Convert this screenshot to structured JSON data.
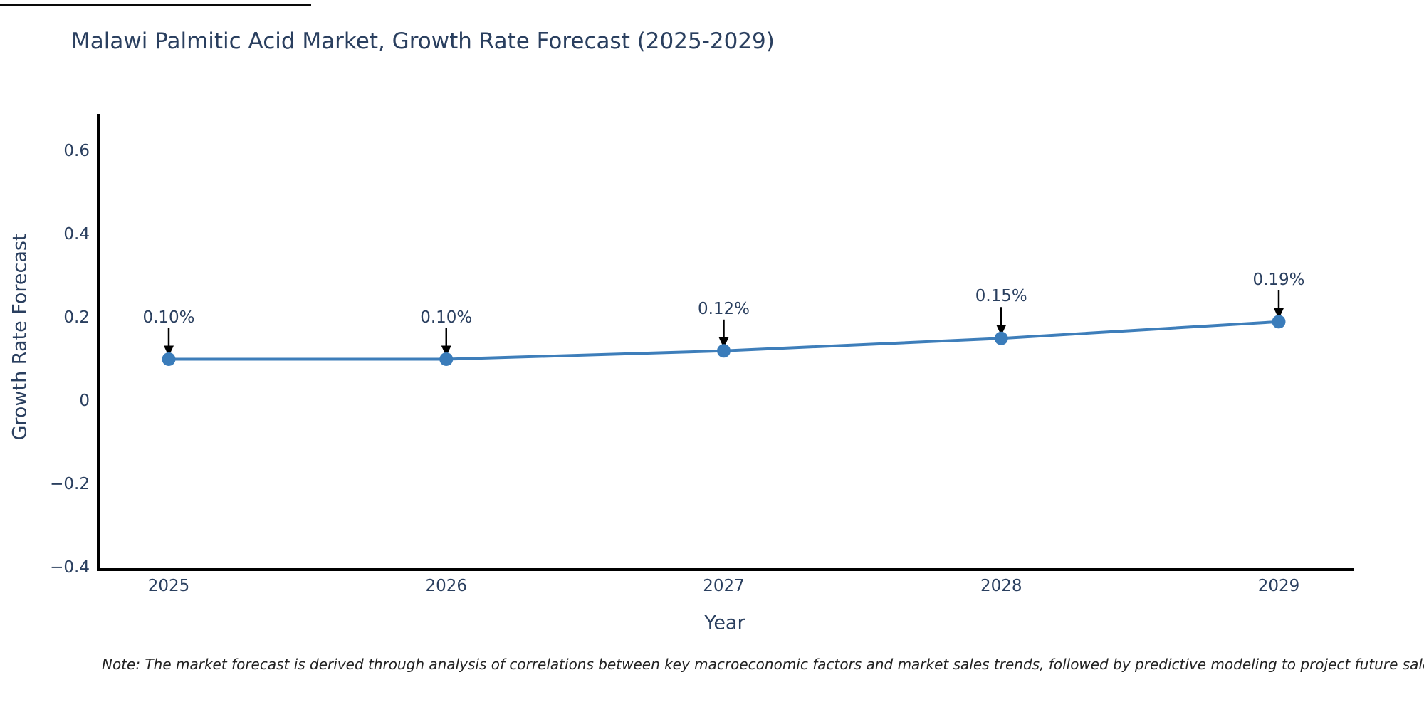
{
  "title": "Malawi Palmitic Acid Market, Growth Rate Forecast (2025-2029)",
  "axes": {
    "x_label": "Year",
    "y_label": "Growth Rate Forecast",
    "y_ticks": [
      "0.6",
      "0.4",
      "0.2",
      "0",
      "−0.2",
      "−0.4"
    ],
    "x_ticks": [
      "2025",
      "2026",
      "2027",
      "2028",
      "2029"
    ]
  },
  "note": "Note: The market forecast is derived through analysis of correlations between key macroeconomic factors and market sales trends, followed by predictive modeling to project future sales.",
  "colors": {
    "text": "#2a3f5f",
    "line": "#3e7eba",
    "marker": "#3a7cba",
    "arrow": "#000000",
    "spine": "#000000",
    "background": "#ffffff"
  },
  "chart_data": {
    "type": "line",
    "x": [
      2025,
      2026,
      2027,
      2028,
      2029
    ],
    "values": [
      0.1,
      0.1,
      0.12,
      0.15,
      0.19
    ],
    "point_labels": [
      "0.10%",
      "0.10%",
      "0.12%",
      "0.15%",
      "0.19%"
    ],
    "series_unit": "percent",
    "title": "Malawi Palmitic Acid Market, Growth Rate Forecast (2025-2029)",
    "xlabel": "Year",
    "ylabel": "Growth Rate Forecast",
    "ylim": [
      -0.405,
      0.69
    ],
    "y_tick_values": [
      0.6,
      0.4,
      0.2,
      0,
      -0.2,
      -0.4
    ],
    "grid": false,
    "legend": "none",
    "annotations": "arrow-down-to-point"
  }
}
